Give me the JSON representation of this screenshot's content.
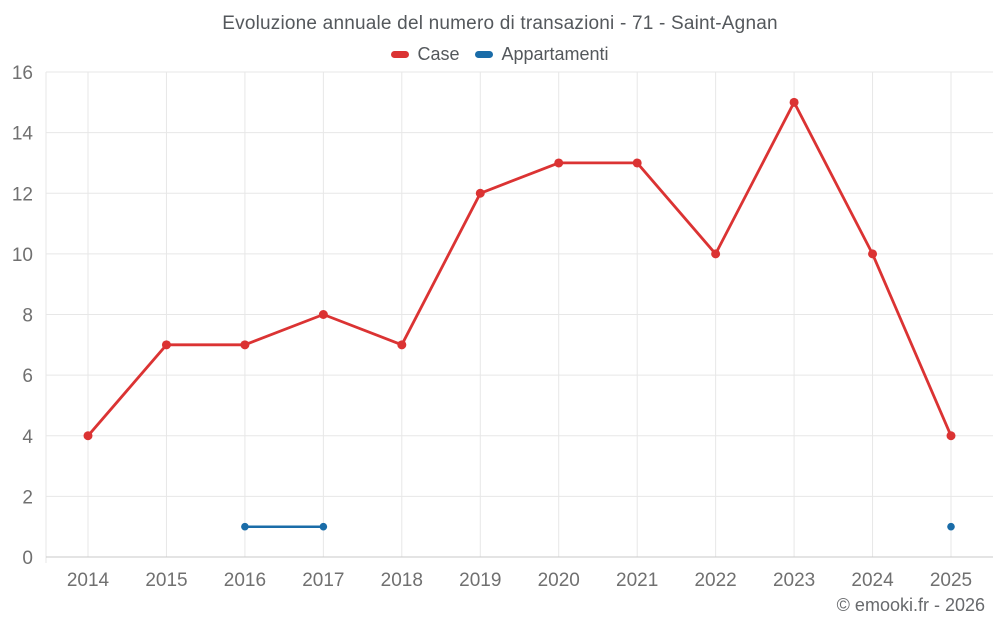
{
  "title": "Evoluzione annuale del numero di transazioni - 71 - Saint-Agnan",
  "watermark": "© emooki.fr - 2026",
  "legend": {
    "items": [
      {
        "label": "Case",
        "color": "#db3333"
      },
      {
        "label": "Appartamenti",
        "color": "#1a6ca8"
      }
    ]
  },
  "colors": {
    "background": "#ffffff",
    "grid": "#e7e7e7",
    "axis_line": "#c9c9c9",
    "title_text": "#54585c",
    "axis_text": "#707070",
    "watermark_text": "#67696c",
    "case_red": "#db3333",
    "appartamenti_blue": "#1a6ca8"
  },
  "chart_data": {
    "type": "line",
    "title": "Evoluzione annuale del numero di transazioni - 71 - Saint-Agnan",
    "categories": [
      "2014",
      "2015",
      "2016",
      "2017",
      "2018",
      "2019",
      "2020",
      "2021",
      "2022",
      "2023",
      "2024",
      "2025"
    ],
    "series": [
      {
        "name": "Case",
        "color": "#db3333",
        "marker_radius": 4.5,
        "line_width": 2.8,
        "values": [
          4,
          7,
          7,
          8,
          7,
          12,
          13,
          13,
          10,
          15,
          10,
          4
        ]
      },
      {
        "name": "Appartamenti",
        "color": "#1a6ca8",
        "marker_radius": 3.8,
        "line_width": 2.5,
        "values": [
          null,
          null,
          1,
          1,
          null,
          null,
          null,
          null,
          null,
          null,
          null,
          1
        ]
      }
    ],
    "xlabel": "",
    "ylabel": "",
    "ylim": [
      0,
      16
    ],
    "y_ticks": [
      0,
      2,
      4,
      6,
      8,
      10,
      12,
      14,
      16
    ],
    "grid": true,
    "legend_position": "top"
  }
}
